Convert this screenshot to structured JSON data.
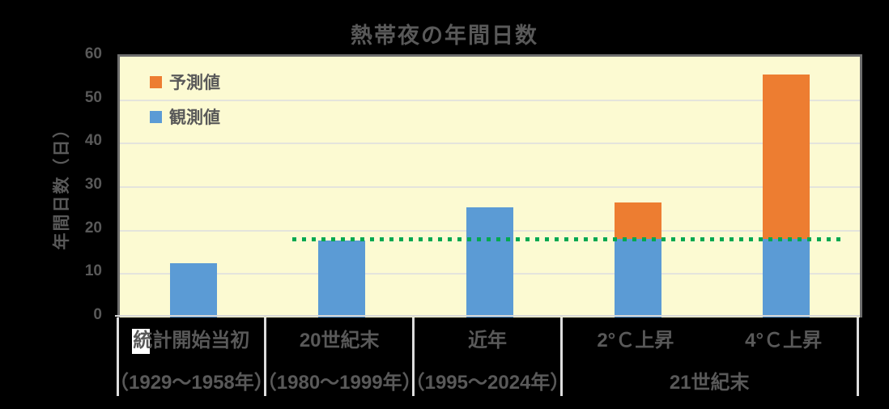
{
  "colors": {
    "background": "#000000",
    "plot_background": "#FCFAD2",
    "gridline": "#E4E4DC",
    "axis_border": "#6E6E6E",
    "axis_bottom_line": "#D6D6D6",
    "category_divider": "#DDDDDD",
    "text": "#595959",
    "observed_blue": "#5B9BD5",
    "predicted_orange": "#ED7D31",
    "reference_green": "#00A850",
    "white_patch": "#FFFFFF"
  },
  "chart_data": {
    "type": "bar",
    "title": "熱帯夜の年間日数",
    "ylabel": "年間日数（日）",
    "xlabel": "",
    "ylim": [
      0,
      60
    ],
    "yticks": [
      0,
      10,
      20,
      30,
      40,
      50,
      60
    ],
    "ytick_labels": [
      "0",
      "10",
      "20",
      "30",
      "40",
      "50",
      "60"
    ],
    "grid": true,
    "legend_position": "top-left",
    "categories": [
      {
        "label": "統計開始当初",
        "sublabel": "（1929～1958年）"
      },
      {
        "label": "20世紀末",
        "sublabel": "（1980～1999年）"
      },
      {
        "label": "近年",
        "sublabel": "（1995～2024年）"
      },
      {
        "label": "2°Ｃ上昇",
        "sublabel": ""
      },
      {
        "label": "4°Ｃ上昇",
        "sublabel": ""
      }
    ],
    "group_sublabel": {
      "label": "21世紀末",
      "span_from": 3,
      "span_to": 4
    },
    "series": [
      {
        "name": "観測値",
        "color": "#5B9BD5",
        "values": [
          12.5,
          17.8,
          25.4,
          18,
          18
        ]
      },
      {
        "name": "予測値",
        "color": "#ED7D31",
        "values": [
          0,
          0,
          0,
          8.4,
          38
        ]
      }
    ],
    "totals": [
      12.5,
      17.8,
      25.4,
      26.4,
      56
    ],
    "legend": [
      {
        "label": "予測値",
        "color": "#ED7D31"
      },
      {
        "label": "観測値",
        "color": "#5B9BD5"
      }
    ],
    "reference_line": {
      "value": 18,
      "color": "#00A850",
      "style": "square-dotted"
    }
  }
}
